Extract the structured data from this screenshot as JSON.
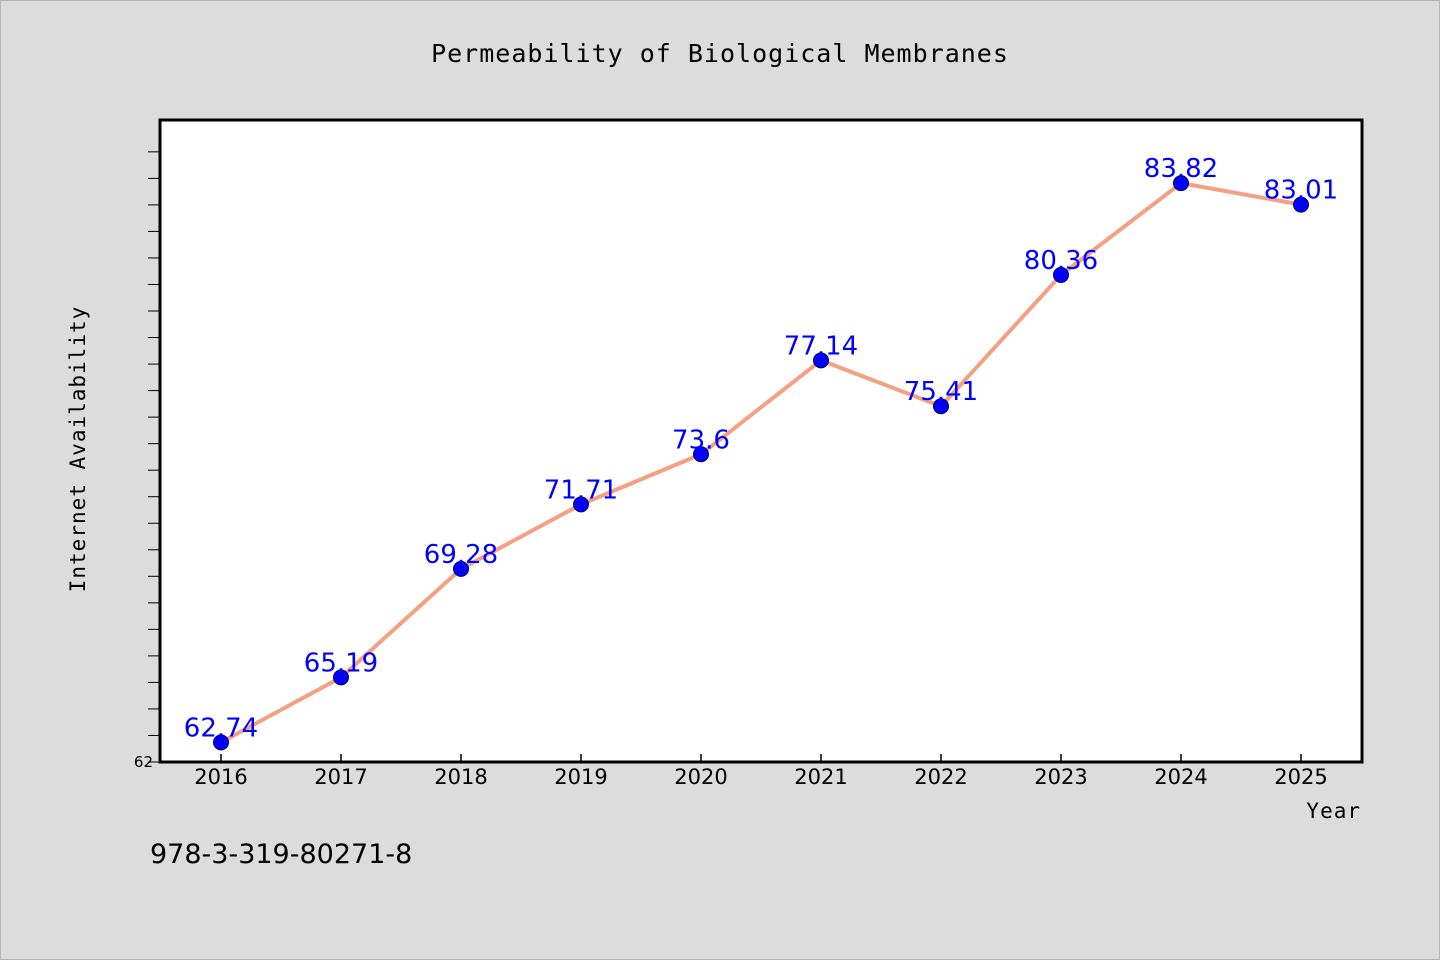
{
  "chart_data": {
    "type": "line",
    "title": "Permeability of Biological Membranes",
    "xlabel": "Year",
    "ylabel": "Internet Availability",
    "categories": [
      "2016",
      "2017",
      "2018",
      "2019",
      "2020",
      "2021",
      "2022",
      "2023",
      "2024",
      "2025"
    ],
    "series": [
      {
        "values": [
          62.74,
          65.19,
          69.28,
          71.71,
          73.6,
          77.14,
          75.41,
          80.36,
          83.82,
          83.01
        ],
        "labels": [
          "62.74",
          "65.19",
          "69.28",
          "71.71",
          "73.6",
          "77.14",
          "75.41",
          "80.36",
          "83.82",
          "83.01"
        ],
        "line_color": "#f4a083",
        "marker_color": "#0000ff"
      }
    ],
    "ylim": [
      62,
      86.2
    ],
    "y_tick_label": "62",
    "grid": false,
    "legend": "none"
  },
  "footer": {
    "note": "978-3-319-80271-8"
  },
  "colors": {
    "background": "#dcdcdc",
    "plot_background": "#ffffff",
    "line": "#f4a083",
    "marker": "#0000ff",
    "data_label": "#0000ff"
  }
}
